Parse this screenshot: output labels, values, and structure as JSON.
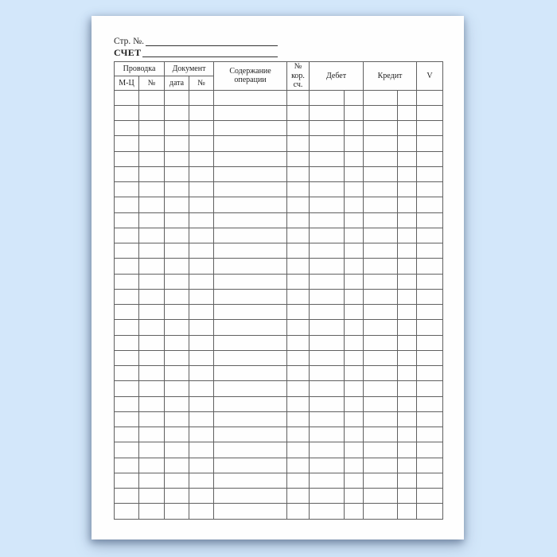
{
  "form": {
    "page_field": {
      "label": "Стр. №.",
      "value": ""
    },
    "account_field": {
      "label": "СЧЕТ",
      "value": ""
    }
  },
  "table": {
    "group_columns": [
      {
        "label": "Проводка",
        "children": [
          "М-Ц",
          "№"
        ]
      },
      {
        "label": "Документ",
        "children": [
          "дата",
          "№"
        ]
      }
    ],
    "merged_columns": {
      "operation": "Содержание операции",
      "corr_account": "№ кор. сч.",
      "debit": "Дебет",
      "credit": "Кредит",
      "check": "V"
    },
    "row_count": 28,
    "body_column_count": 11
  },
  "colors": {
    "background": "#d3e7fa",
    "paper": "#fefefe",
    "grid_border": "#606060",
    "text": "#222222"
  }
}
